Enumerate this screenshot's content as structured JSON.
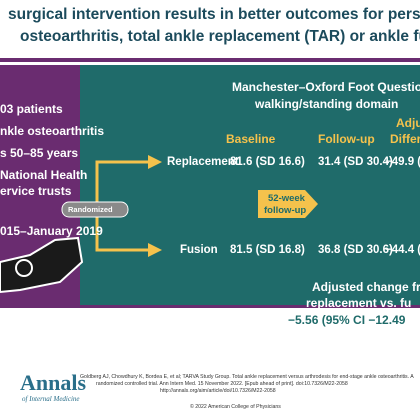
{
  "header": {
    "title_lines": [
      "surgical intervention results in better outcomes for persons with severe",
      "osteoarthritis, total ankle replacement (TAR) or ankle fusion (AF)?"
    ]
  },
  "population": [
    "03 patients",
    "nkle osteoarthritis",
    "s 50–85 years",
    "National Health",
    "ervice trusts",
    "015–January 2019"
  ],
  "randomized": "Randomized",
  "results": {
    "heading": [
      "Manchester–Oxford Foot Questionnai",
      "walking/standing domain"
    ],
    "columns": [
      "Baseline",
      "Follow-up",
      [
        "Adju",
        "Differ"
      ]
    ],
    "followup_label": [
      "52-week",
      "follow-up"
    ],
    "rows": [
      [
        "Replacement",
        "81.6 (SD 16.6)",
        "31.4 (SD 30.4)",
        "−49.9 ("
      ],
      [
        "Fusion",
        "81.5 (SD 16.8)",
        "36.8 (SD 30.6)",
        "−44.4 ("
      ]
    ],
    "adjusted": [
      "Adjusted change from",
      "replacement vs. fu",
      "−5.56 (95% CI −12.49"
    ]
  },
  "footer": {
    "logo": [
      "Annals",
      "of Internal Medicine"
    ],
    "citation": [
      "Goldberg AJ, Chowdhury K, Bordea E, et al; TARVA Study Group. Total ankle replacement versus arthrodesis for end-stage ankle osteoarthritis. A",
      "randomized controlled trial. Ann Intern Med. 15 November 2022. [Epub ahead of print]. doi:10.7326/M22-2058",
      "http://annals.org/aim/article/doi/10.7326/M22-2058"
    ],
    "copyright": "© 2022 American College of Physicians"
  }
}
